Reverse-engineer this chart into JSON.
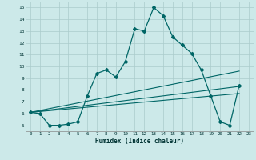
{
  "xlabel": "Humidex (Indice chaleur)",
  "bg_color": "#cce9e9",
  "grid_color": "#aacccc",
  "line_color": "#006666",
  "xlim": [
    -0.5,
    23.5
  ],
  "ylim": [
    4.5,
    15.5
  ],
  "xticks": [
    0,
    1,
    2,
    3,
    4,
    5,
    6,
    7,
    8,
    9,
    10,
    11,
    12,
    13,
    14,
    15,
    16,
    17,
    18,
    19,
    20,
    21,
    22,
    23
  ],
  "yticks": [
    5,
    6,
    7,
    8,
    9,
    10,
    11,
    12,
    13,
    14,
    15
  ],
  "main_series_x": [
    0,
    1,
    2,
    3,
    4,
    5,
    6,
    7,
    8,
    9,
    10,
    11,
    12,
    13,
    14,
    15,
    16,
    17,
    18,
    19,
    20,
    21,
    22
  ],
  "main_series_y": [
    6.1,
    6.0,
    5.0,
    5.0,
    5.1,
    5.3,
    7.5,
    9.4,
    9.7,
    9.1,
    10.4,
    13.2,
    13.0,
    15.0,
    14.3,
    12.5,
    11.8,
    11.1,
    9.7,
    7.5,
    5.3,
    5.0,
    8.4
  ],
  "flat_line1_x": [
    0,
    22
  ],
  "flat_line1_y": [
    6.1,
    9.6
  ],
  "flat_line2_x": [
    0,
    22
  ],
  "flat_line2_y": [
    6.1,
    8.3
  ],
  "flat_line3_x": [
    0,
    22
  ],
  "flat_line3_y": [
    6.1,
    7.7
  ]
}
